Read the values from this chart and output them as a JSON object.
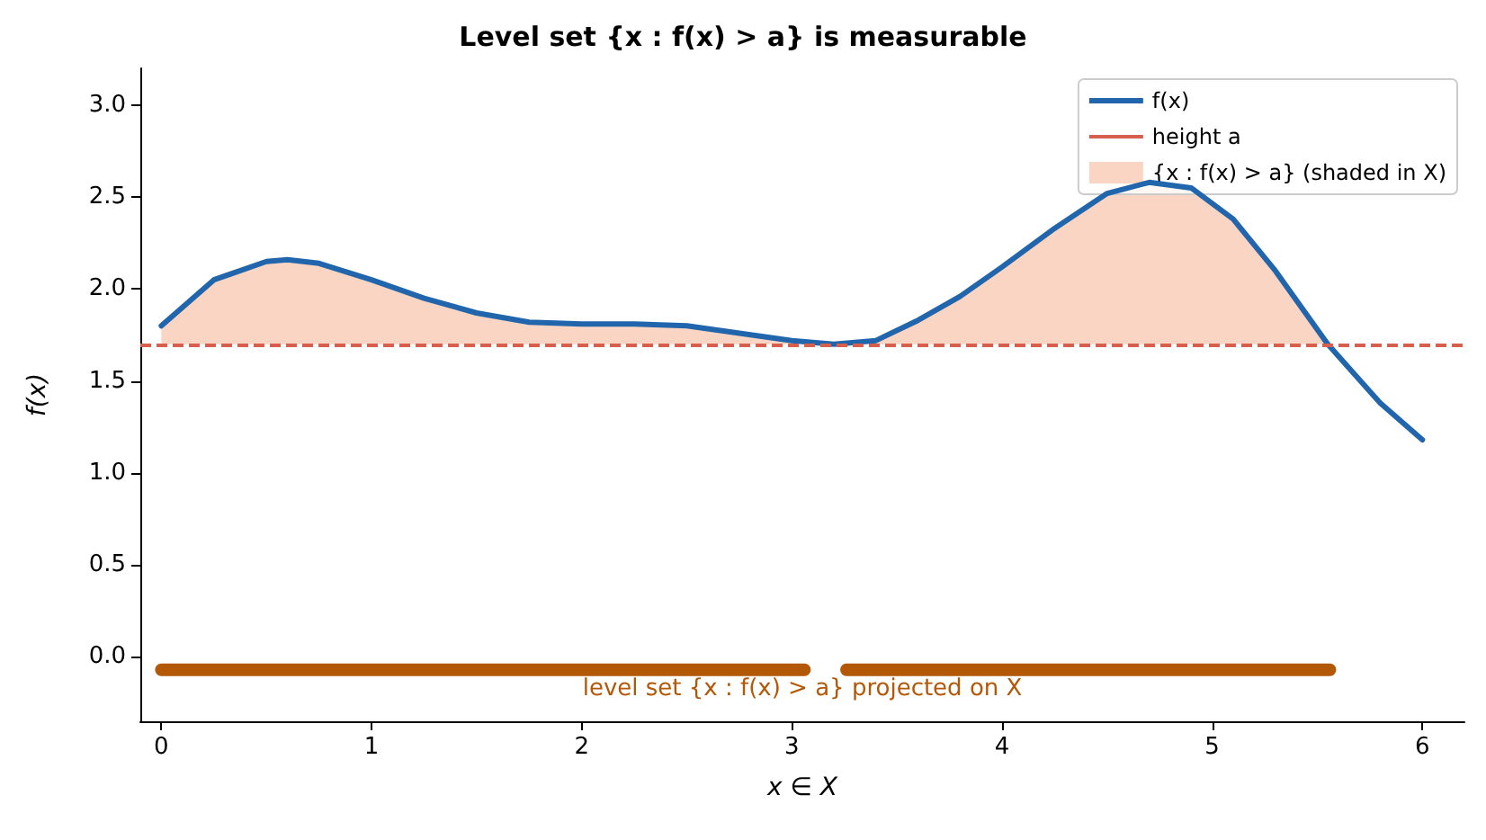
{
  "chart_data": {
    "type": "line",
    "title": "Level set {x : f(x) > a} is measurable",
    "xlabel": "x ∈ X",
    "ylabel": "f(x)",
    "xlim": [
      -0.1,
      6.2
    ],
    "xticks": [
      0,
      1,
      2,
      3,
      4,
      5,
      6
    ],
    "ylim": [
      -0.35,
      3.2
    ],
    "yticks": [
      {
        "value": 0,
        "label": "0.0"
      },
      {
        "value": 0.5,
        "label": "0.5"
      },
      {
        "value": 1,
        "label": "1.0"
      },
      {
        "value": 1.5,
        "label": "1.5"
      },
      {
        "value": 2,
        "label": "2.0"
      },
      {
        "value": 2.5,
        "label": "2.5"
      },
      {
        "value": 3,
        "label": "3.0"
      }
    ],
    "grid": false,
    "legend": "top right",
    "marker": "none",
    "ref_lines": [
      {
        "axis": "y",
        "value": 1.7,
        "label": "height a",
        "color": "#d6604d",
        "line_style": "dashed"
      }
    ],
    "series": [
      {
        "name": "f(x)",
        "color": "#2166ac",
        "line_style": "solid",
        "x": [
          0,
          0.25,
          0.5,
          0.6,
          0.75,
          1,
          1.25,
          1.5,
          1.75,
          2,
          2.25,
          2.5,
          2.75,
          3,
          3.2,
          3.4,
          3.6,
          3.8,
          4,
          4.25,
          4.5,
          4.7,
          4.9,
          5.1,
          5.3,
          5.55,
          5.8,
          6
        ],
        "values": [
          1.8,
          2.05,
          2.15,
          2.16,
          2.14,
          2.05,
          1.95,
          1.87,
          1.82,
          1.81,
          1.81,
          1.8,
          1.76,
          1.72,
          1.7,
          1.72,
          1.83,
          1.96,
          2.12,
          2.33,
          2.52,
          2.58,
          2.55,
          2.38,
          2.1,
          1.7,
          1.38,
          1.18
        ]
      },
      {
        "type": "area",
        "name": "{x : f(x) > a} (shaded in X)",
        "color": "#fbd5c3",
        "x": [
          0,
          0.25,
          0.5,
          0.6,
          0.75,
          1,
          1.25,
          1.5,
          1.75,
          2,
          2.25,
          2.5,
          2.75,
          3,
          3.2,
          3.4,
          3.6,
          3.8,
          4,
          4.25,
          4.5,
          4.7,
          4.9,
          5.1,
          5.3,
          5.55
        ],
        "values": [
          1.8,
          2.05,
          2.15,
          2.16,
          2.14,
          2.05,
          1.95,
          1.87,
          1.82,
          1.81,
          1.81,
          1.8,
          1.76,
          1.72,
          null,
          1.72,
          1.83,
          1.96,
          2.12,
          2.33,
          2.52,
          2.58,
          2.55,
          2.38,
          2.1,
          1.7
        ]
      },
      {
        "color": "#b35806",
        "line_style": "solid",
        "x": [
          0,
          3.06,
          3.16,
          3.26,
          5.56
        ],
        "values": [
          -0.07,
          -0.07,
          null,
          -0.07,
          -0.07
        ]
      }
    ],
    "annotations": [
      "level set {x : f(x) > a} projected on X"
    ]
  }
}
